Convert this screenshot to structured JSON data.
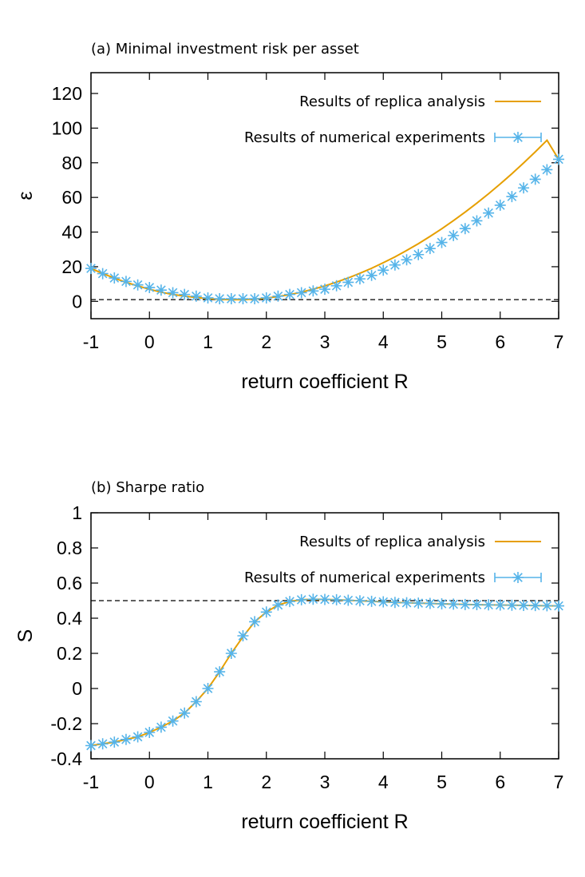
{
  "chart_data": [
    {
      "type": "line",
      "title": "(a) Minimal investment risk per asset",
      "xlabel": "return coefficient R",
      "ylabel": "ε",
      "xlim": [
        -1,
        7
      ],
      "ylim": [
        -10,
        132
      ],
      "xticks": [
        -1,
        0,
        1,
        2,
        3,
        4,
        5,
        6,
        7
      ],
      "yticks": [
        0,
        20,
        40,
        60,
        80,
        100,
        120
      ],
      "reference_line": {
        "y": 1,
        "style": "dashed"
      },
      "legend": {
        "position": "top-right"
      },
      "x": [
        -1.0,
        -0.8,
        -0.6,
        -0.4,
        -0.2,
        0.0,
        0.2,
        0.4,
        0.6,
        0.8,
        1.0,
        1.2,
        1.4,
        1.6,
        1.8,
        2.0,
        2.2,
        2.4,
        2.6,
        2.8,
        3.0,
        3.2,
        3.4,
        3.6,
        3.8,
        4.0,
        4.2,
        4.4,
        4.6,
        4.8,
        5.0,
        5.2,
        5.4,
        5.6,
        5.8,
        6.0,
        6.2,
        6.4,
        6.6,
        6.8,
        7.0
      ],
      "series": [
        {
          "name": "Results of replica analysis",
          "style": "line",
          "color": "#e69f00",
          "values": [
            19.0,
            16.1,
            13.4,
            11.0,
            8.9,
            7.0,
            5.3,
            4.0,
            3.0,
            2.2,
            1.6,
            1.2,
            1.0,
            1.0,
            1.3,
            1.9,
            2.8,
            3.9,
            5.3,
            7.0,
            8.9,
            11.1,
            13.5,
            16.2,
            19.1,
            22.3,
            25.7,
            29.4,
            33.3,
            37.5,
            41.9,
            46.6,
            51.5,
            56.7,
            62.1,
            67.8,
            73.7,
            79.9,
            86.3,
            93.0,
            82.0
          ]
        },
        {
          "name": "Results of numerical experiments",
          "style": "points-with-errorbars",
          "color": "#56b4e9",
          "values": [
            19.0,
            16.0,
            13.5,
            11.5,
            9.5,
            8.0,
            6.5,
            5.0,
            4.0,
            3.0,
            2.0,
            1.5,
            1.5,
            1.5,
            1.5,
            2.0,
            3.0,
            4.0,
            5.0,
            6.0,
            7.0,
            9.0,
            11.0,
            13.0,
            15.0,
            18.0,
            21.0,
            24.0,
            27.0,
            30.5,
            34.0,
            38.0,
            42.0,
            46.5,
            51.0,
            55.5,
            60.5,
            65.5,
            70.5,
            76.0,
            82.0
          ]
        }
      ]
    },
    {
      "type": "line",
      "title": "(b) Sharpe ratio",
      "xlabel": "return coefficient R",
      "ylabel": "S",
      "xlim": [
        -1,
        7
      ],
      "ylim": [
        -0.4,
        1
      ],
      "xticks": [
        -1,
        0,
        1,
        2,
        3,
        4,
        5,
        6,
        7
      ],
      "yticks": [
        -0.4,
        -0.2,
        0,
        0.2,
        0.4,
        0.6,
        0.8,
        1
      ],
      "ytick_labels": [
        "-0.4",
        "-0.2",
        "0",
        "0.2",
        "0.4",
        "0.6",
        "0.8",
        "1"
      ],
      "reference_line": {
        "y": 0.5,
        "style": "dashed"
      },
      "legend": {
        "position": "top-right"
      },
      "x": [
        -1.0,
        -0.8,
        -0.6,
        -0.4,
        -0.2,
        0.0,
        0.2,
        0.4,
        0.6,
        0.8,
        1.0,
        1.2,
        1.4,
        1.6,
        1.8,
        2.0,
        2.2,
        2.4,
        2.6,
        2.8,
        3.0,
        3.2,
        3.4,
        3.6,
        3.8,
        4.0,
        4.2,
        4.4,
        4.6,
        4.8,
        5.0,
        5.2,
        5.4,
        5.6,
        5.8,
        6.0,
        6.2,
        6.4,
        6.6,
        6.8,
        7.0
      ],
      "series": [
        {
          "name": "Results of replica analysis",
          "style": "line",
          "color": "#e69f00",
          "values": [
            -0.325,
            -0.315,
            -0.305,
            -0.29,
            -0.275,
            -0.25,
            -0.22,
            -0.185,
            -0.14,
            -0.075,
            0.0,
            0.095,
            0.2,
            0.295,
            0.38,
            0.435,
            0.475,
            0.495,
            0.505,
            0.508,
            0.507,
            0.505,
            0.502,
            0.499,
            0.496,
            0.493,
            0.49,
            0.488,
            0.486,
            0.484,
            0.482,
            0.48,
            0.478,
            0.477,
            0.476,
            0.475,
            0.474,
            0.473,
            0.472,
            0.471,
            0.47
          ]
        },
        {
          "name": "Results of numerical experiments",
          "style": "points-with-errorbars",
          "color": "#56b4e9",
          "values": [
            -0.325,
            -0.315,
            -0.305,
            -0.29,
            -0.275,
            -0.25,
            -0.22,
            -0.185,
            -0.14,
            -0.075,
            0.0,
            0.095,
            0.2,
            0.3,
            0.38,
            0.435,
            0.475,
            0.495,
            0.505,
            0.508,
            0.507,
            0.505,
            0.502,
            0.499,
            0.496,
            0.493,
            0.49,
            0.488,
            0.486,
            0.484,
            0.482,
            0.48,
            0.478,
            0.477,
            0.476,
            0.475,
            0.474,
            0.473,
            0.472,
            0.471,
            0.47
          ]
        }
      ]
    }
  ]
}
